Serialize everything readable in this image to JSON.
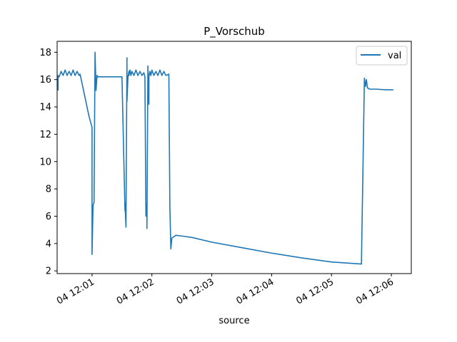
{
  "chart_data": {
    "type": "line",
    "title": "P_Vorschub",
    "xlabel": "source",
    "ylabel": "",
    "x_axis_type": "time",
    "xlim": [
      "12:00:25",
      "12:06:20"
    ],
    "ylim": [
      1.8,
      18.8
    ],
    "xticks": [
      {
        "t": "12:01:00",
        "label": "04 12:01"
      },
      {
        "t": "12:02:00",
        "label": "04 12:02"
      },
      {
        "t": "12:03:00",
        "label": "04 12:03"
      },
      {
        "t": "12:04:00",
        "label": "04 12:04"
      },
      {
        "t": "12:05:00",
        "label": "04 12:05"
      },
      {
        "t": "12:06:00",
        "label": "04 12:06"
      }
    ],
    "yticks": [
      2,
      4,
      6,
      8,
      10,
      12,
      14,
      16,
      18
    ],
    "grid": false,
    "legend": {
      "position": "top-right",
      "entries": [
        "val"
      ]
    },
    "series": [
      {
        "name": "val",
        "color": "#1f77b4",
        "x": [
          "12:00:26",
          "12:00:26",
          "12:00:27",
          "12:00:29",
          "12:00:31",
          "12:00:33",
          "12:00:35",
          "12:00:37",
          "12:00:39",
          "12:00:41",
          "12:00:43",
          "12:00:45",
          "12:00:47",
          "12:00:48",
          "12:00:57",
          "12:01:00",
          "12:01:00",
          "12:01:01",
          "12:01:02",
          "12:01:03",
          "12:01:04",
          "12:01:05",
          "12:01:05",
          "12:01:06",
          "12:01:07",
          "12:01:10",
          "12:01:20",
          "12:01:30",
          "12:01:33",
          "12:01:33",
          "12:01:34",
          "12:01:35",
          "12:01:35",
          "12:01:36",
          "12:01:37",
          "12:01:37",
          "12:01:38",
          "12:01:39",
          "12:01:40",
          "12:01:42",
          "12:01:44",
          "12:01:46",
          "12:01:48",
          "12:01:50",
          "12:01:52",
          "12:01:53",
          "12:01:54",
          "12:01:55",
          "12:01:55",
          "12:01:56",
          "12:01:57",
          "12:01:57",
          "12:01:58",
          "12:01:59",
          "12:02:00",
          "12:02:02",
          "12:02:04",
          "12:02:06",
          "12:02:08",
          "12:02:10",
          "12:02:12",
          "12:02:14",
          "12:02:17",
          "12:02:18",
          "12:02:19",
          "12:02:20",
          "12:02:24",
          "12:02:30",
          "12:02:40",
          "12:03:00",
          "12:03:30",
          "12:04:00",
          "12:04:30",
          "12:05:00",
          "12:05:30",
          "12:05:33",
          "12:05:34",
          "12:05:35",
          "12:05:36",
          "12:05:38",
          "12:05:45",
          "12:05:55",
          "12:06:02"
        ],
        "y": [
          15.2,
          16.3,
          16.2,
          16.6,
          16.3,
          16.7,
          16.3,
          16.6,
          16.3,
          16.7,
          16.3,
          16.6,
          16.3,
          16.4,
          13.3,
          12.5,
          3.2,
          6.8,
          7.0,
          18.0,
          15.2,
          16.3,
          16.3,
          16.2,
          16.2,
          16.2,
          16.2,
          16.2,
          6.4,
          7.0,
          5.2,
          17.6,
          14.4,
          16.2,
          16.6,
          16.3,
          16.7,
          16.3,
          16.6,
          16.3,
          16.7,
          16.3,
          16.6,
          16.3,
          16.5,
          16.2,
          6.0,
          6.9,
          5.1,
          17.0,
          14.2,
          16.2,
          16.6,
          16.3,
          16.7,
          16.3,
          16.6,
          16.3,
          16.7,
          16.3,
          16.6,
          16.3,
          16.4,
          6.7,
          3.6,
          4.4,
          4.6,
          4.55,
          4.45,
          4.1,
          3.7,
          3.3,
          2.95,
          2.65,
          2.5,
          16.1,
          15.5,
          16.0,
          15.4,
          15.3,
          15.3,
          15.25,
          15.25
        ]
      }
    ]
  }
}
